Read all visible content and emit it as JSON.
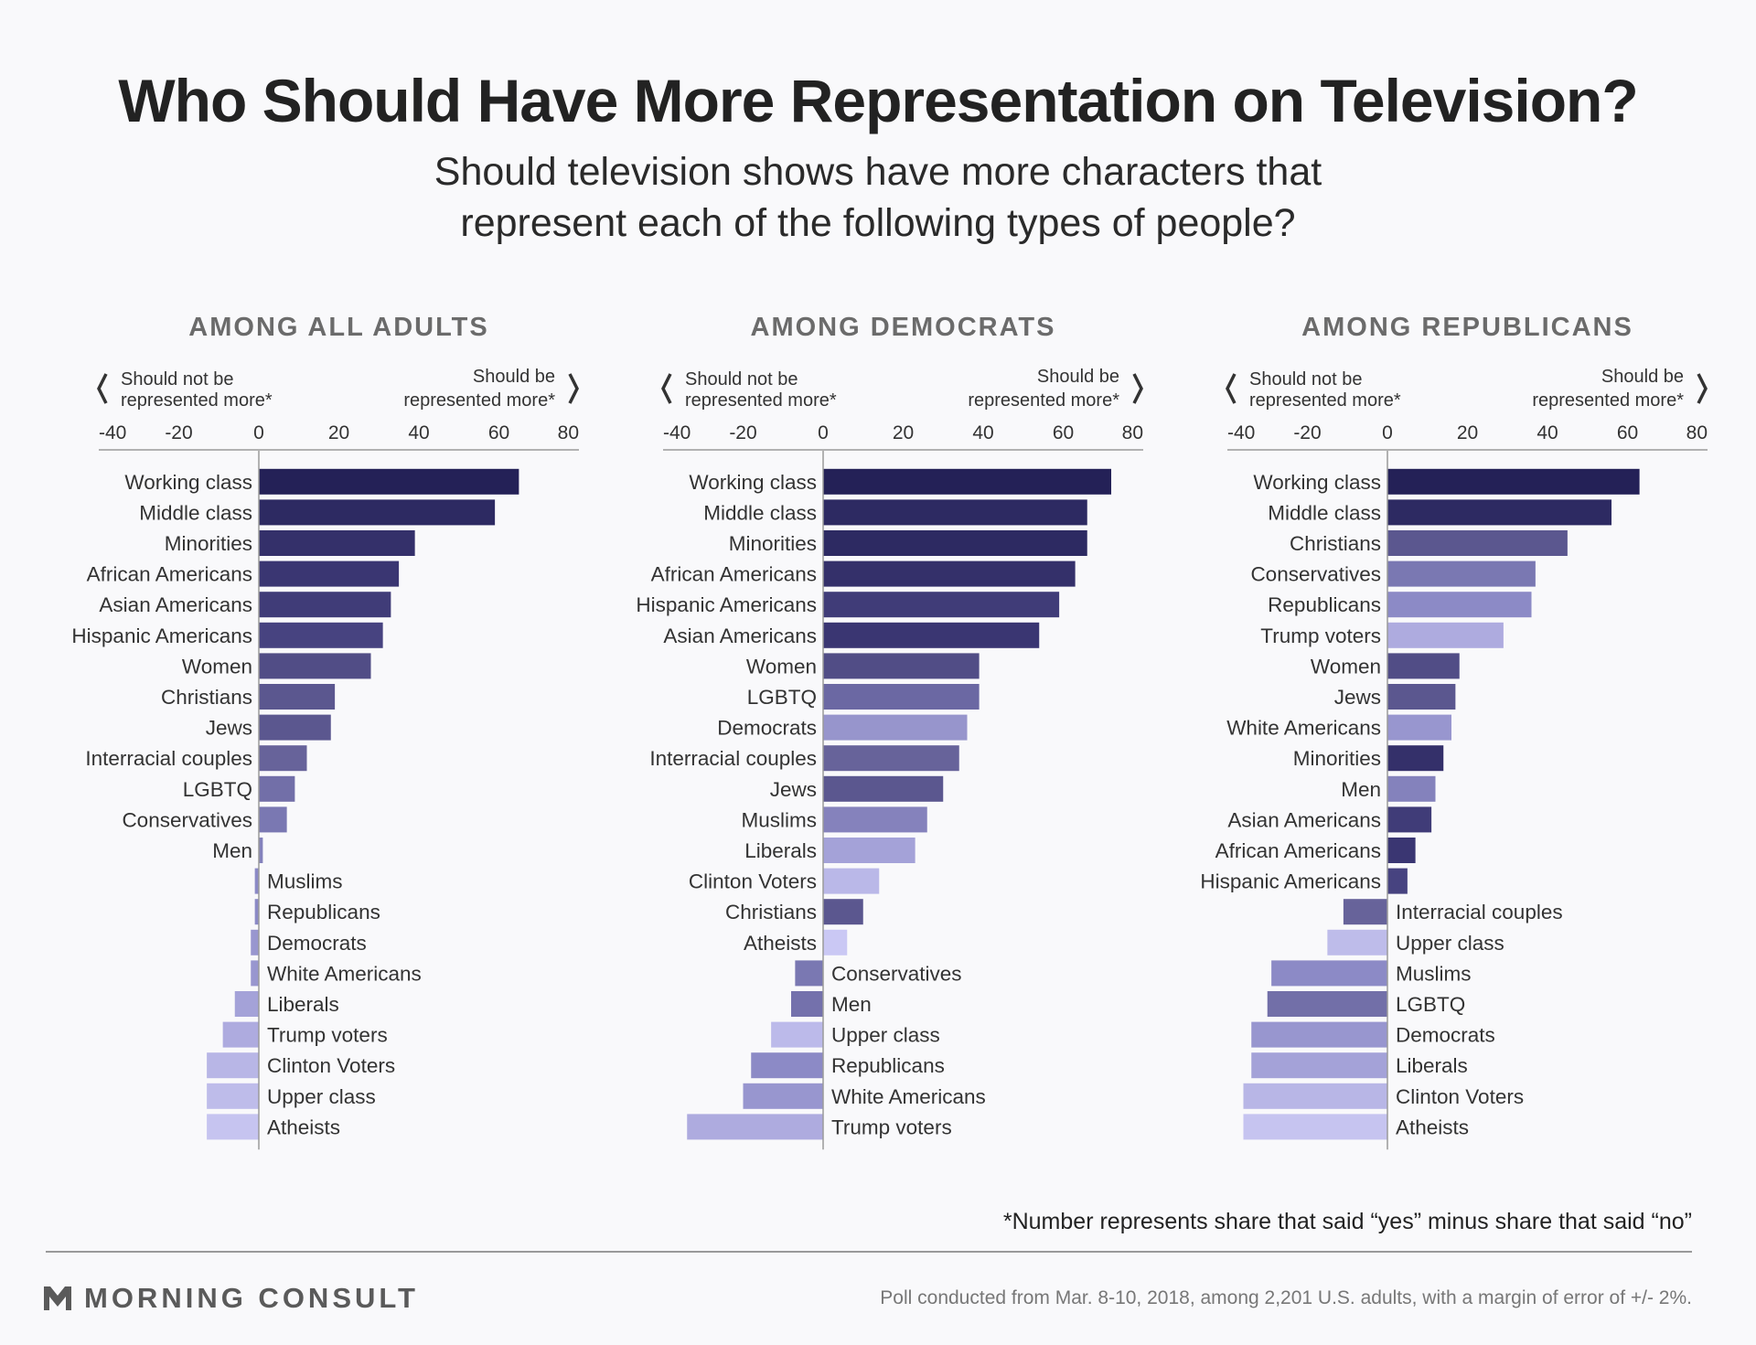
{
  "title": "Who Should Have More Representation on Television?",
  "subtitle_line1": "Should television shows have more characters that",
  "subtitle_line2": "represent each of the following types of people?",
  "legend": {
    "left_line1": "Should not be",
    "left_line2": "represented more*",
    "right_line1": "Should be",
    "right_line2": "represented more*"
  },
  "footnote": "*Number represents share that said “yes” minus share that said “no”",
  "brand": "MORNING CONSULT",
  "source": "Poll conducted from Mar. 8-10, 2018, among 2,201 U.S. adults, with a margin of error of +/- 2%.",
  "chart_data": [
    {
      "type": "bar",
      "orientation": "horizontal",
      "title": "AMONG ALL ADULTS",
      "xlim": [
        -40,
        80
      ],
      "xticks": [
        -40,
        -20,
        0,
        20,
        40,
        60,
        80
      ],
      "categories": [
        "Working class",
        "Middle class",
        "Minorities",
        "African Americans",
        "Asian Americans",
        "Hispanic Americans",
        "Women",
        "Christians",
        "Jews",
        "Interracial couples",
        "LGBTQ",
        "Conservatives",
        "Men",
        "Muslims",
        "Republicans",
        "Democrats",
        "White Americans",
        "Liberals",
        "Trump voters",
        "Clinton Voters",
        "Upper class",
        "Atheists"
      ],
      "values": [
        65,
        59,
        39,
        35,
        33,
        31,
        28,
        19,
        18,
        12,
        9,
        7,
        1,
        -1,
        -1,
        -2,
        -2,
        -6,
        -9,
        -13,
        -13,
        -13
      ],
      "colors": [
        "#242157",
        "#2d2a62",
        "#34306a",
        "#3a3672",
        "#403c78",
        "#474380",
        "#514d86",
        "#5b578f",
        "#5b578f",
        "#67639a",
        "#726fa8",
        "#7a78b2",
        "#8482bc",
        "#8c8ac6",
        "#8c8ac6",
        "#9896cf",
        "#9896cf",
        "#a4a2d8",
        "#aeabdf",
        "#b8b6e6",
        "#bebcea",
        "#c6c4f0"
      ]
    },
    {
      "type": "bar",
      "orientation": "horizontal",
      "title": "AMONG DEMOCRATS",
      "xlim": [
        -40,
        80
      ],
      "xticks": [
        -40,
        -20,
        0,
        20,
        40,
        60,
        80
      ],
      "categories": [
        "Working class",
        "Middle class",
        "Minorities",
        "African Americans",
        "Hispanic Americans",
        "Asian Americans",
        "Women",
        "LGBTQ",
        "Democrats",
        "Interracial couples",
        "Jews",
        "Muslims",
        "Liberals",
        "Clinton Voters",
        "Christians",
        "Atheists",
        "Conservatives",
        "Men",
        "Upper class",
        "Republicans",
        "White Americans",
        "Trump voters"
      ],
      "values": [
        72,
        66,
        66,
        63,
        59,
        54,
        39,
        39,
        36,
        34,
        30,
        26,
        23,
        14,
        10,
        6,
        -7,
        -8,
        -13,
        -18,
        -20,
        -34
      ],
      "colors": [
        "#242157",
        "#2d2a62",
        "#2d2a62",
        "#34306a",
        "#403c78",
        "#3a3672",
        "#514d86",
        "#6b68a3",
        "#9795cc",
        "#67639a",
        "#5b578f",
        "#8582bc",
        "#a4a2d8",
        "#bab8e8",
        "#5b578f",
        "#cac8f4",
        "#7a78b2",
        "#7471ac",
        "#bcbaea",
        "#8c8ac6",
        "#9896cf",
        "#aeabdf"
      ]
    },
    {
      "type": "bar",
      "orientation": "horizontal",
      "title": "AMONG REPUBLICANS",
      "xlim": [
        -40,
        80
      ],
      "xticks": [
        -40,
        -20,
        0,
        20,
        40,
        60,
        80
      ],
      "categories": [
        "Working class",
        "Middle class",
        "Christians",
        "Conservatives",
        "Republicans",
        "Trump voters",
        "Women",
        "Jews",
        "White Americans",
        "Minorities",
        "Men",
        "Asian Americans",
        "African Americans",
        "Hispanic Americans",
        "Interracial couples",
        "Upper class",
        "Muslims",
        "LGBTQ",
        "Democrats",
        "Liberals",
        "Clinton Voters",
        "Atheists"
      ],
      "values": [
        63,
        56,
        45,
        37,
        36,
        29,
        18,
        17,
        16,
        14,
        12,
        11,
        7,
        5,
        -11,
        -15,
        -29,
        -30,
        -34,
        -34,
        -36,
        -36
      ],
      "colors": [
        "#242157",
        "#2d2a62",
        "#5b578f",
        "#7a78b2",
        "#8c8ac6",
        "#aeabdf",
        "#514d86",
        "#5b578f",
        "#9896cf",
        "#34306a",
        "#8482bc",
        "#403c78",
        "#3a3672",
        "#474380",
        "#67639a",
        "#bebcea",
        "#8c8ac6",
        "#726fa8",
        "#9896cf",
        "#a4a2d8",
        "#b8b6e6",
        "#c6c4f0"
      ]
    }
  ]
}
